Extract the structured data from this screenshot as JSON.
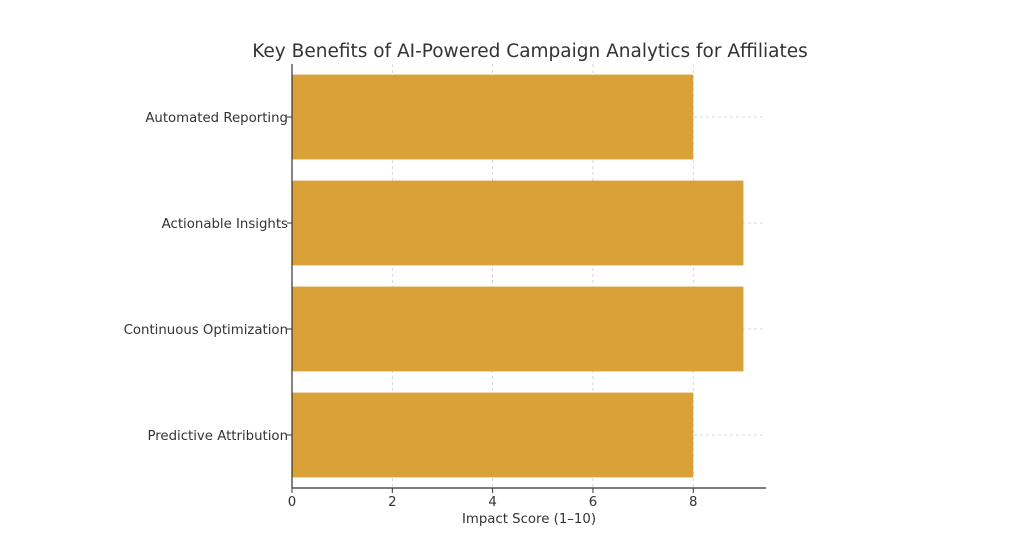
{
  "chart_data": {
    "type": "bar",
    "orientation": "horizontal",
    "title": "Key Benefits of AI-Powered Campaign Analytics for Affiliates",
    "xlabel": "Impact Score (1–10)",
    "ylabel": "",
    "categories": [
      "Predictive Attribution",
      "Continuous Optimization",
      "Actionable Insights",
      "Automated Reporting"
    ],
    "values": [
      8,
      9,
      9,
      8
    ],
    "xlim": [
      0,
      9.45
    ],
    "xticks": [
      0,
      2,
      4,
      6,
      8
    ],
    "grid": true,
    "colors": {
      "bar": "#DAA138",
      "grid": "#cccccc",
      "axis": "#333333"
    }
  }
}
